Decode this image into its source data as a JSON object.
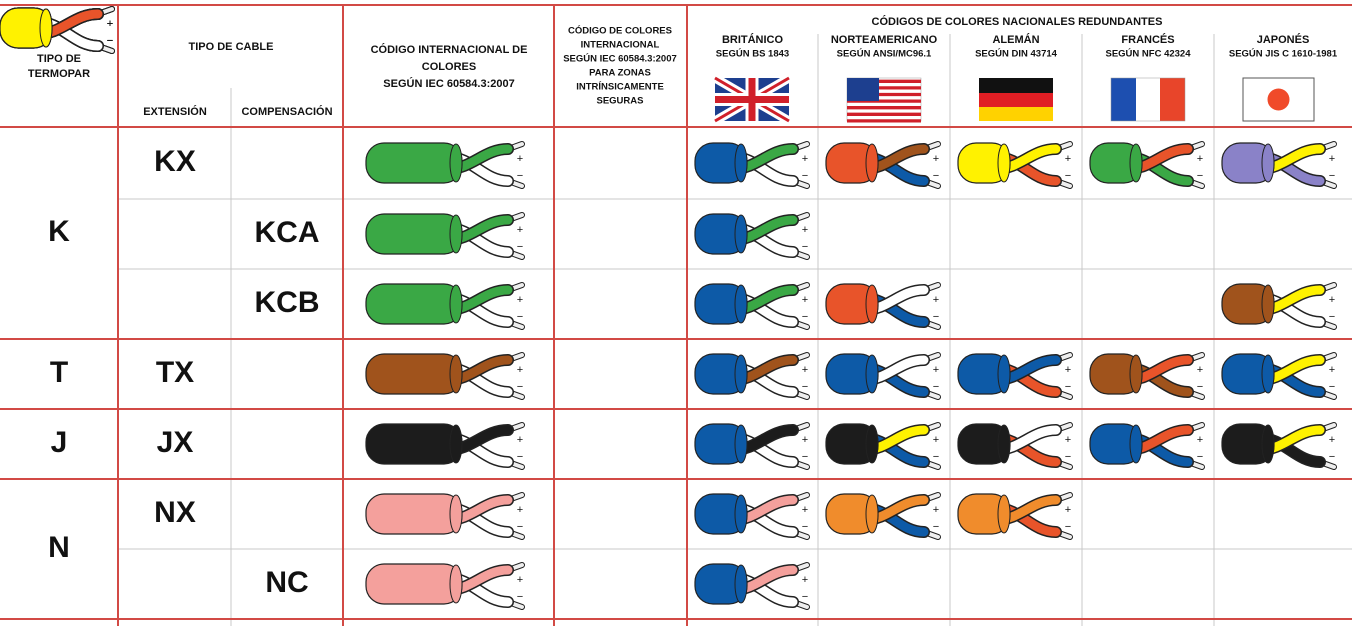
{
  "header": {
    "thermocouple_type": [
      "TIPO DE",
      "TERMOPAR"
    ],
    "cable_type": "TIPO DE CABLE",
    "extension": "EXTENSIÓN",
    "compensation": "COMPENSACIÓN",
    "international": [
      "CÓDIGO INTERNACIONAL DE",
      "COLORES",
      "SEGÚN IEC 60584.3:2007"
    ],
    "intrinsic": [
      "CÓDIGO DE COLORES",
      "INTERNACIONAL",
      "SEGÚN IEC 60584.3:2007",
      "PARA ZONAS",
      "INTRÍNSICAMENTE",
      "SEGURAS"
    ],
    "national": "CÓDIGOS DE COLORES NACIONALES REDUNDANTES",
    "countries": [
      {
        "name": "BRITÁNICO",
        "standard": "SEGÚN BS 1843"
      },
      {
        "name": "NORTEAMERICANO",
        "standard": "SEGÚN ANSI/MC96.1"
      },
      {
        "name": "ALEMÁN",
        "standard": "SEGÚN DIN 43714"
      },
      {
        "name": "FRANCÉS",
        "standard": "SEGÚN NFC 42324"
      },
      {
        "name": "JAPONÉS",
        "standard": "SEGÚN JIS C 1610-1981"
      }
    ]
  },
  "symbols": {
    "plus": "+",
    "minus": "−"
  },
  "groups": [
    {
      "type": "K",
      "rows": [
        {
          "extension": "KX"
        },
        {
          "compensation": "KCA"
        },
        {
          "compensation": "KCB"
        }
      ]
    },
    {
      "type": "T",
      "rows": [
        {
          "extension": "TX"
        }
      ]
    },
    {
      "type": "J",
      "rows": [
        {
          "extension": "JX"
        }
      ]
    },
    {
      "type": "N",
      "rows": [
        {
          "extension": "NX"
        },
        {
          "compensation": "NC"
        }
      ]
    }
  ]
}
